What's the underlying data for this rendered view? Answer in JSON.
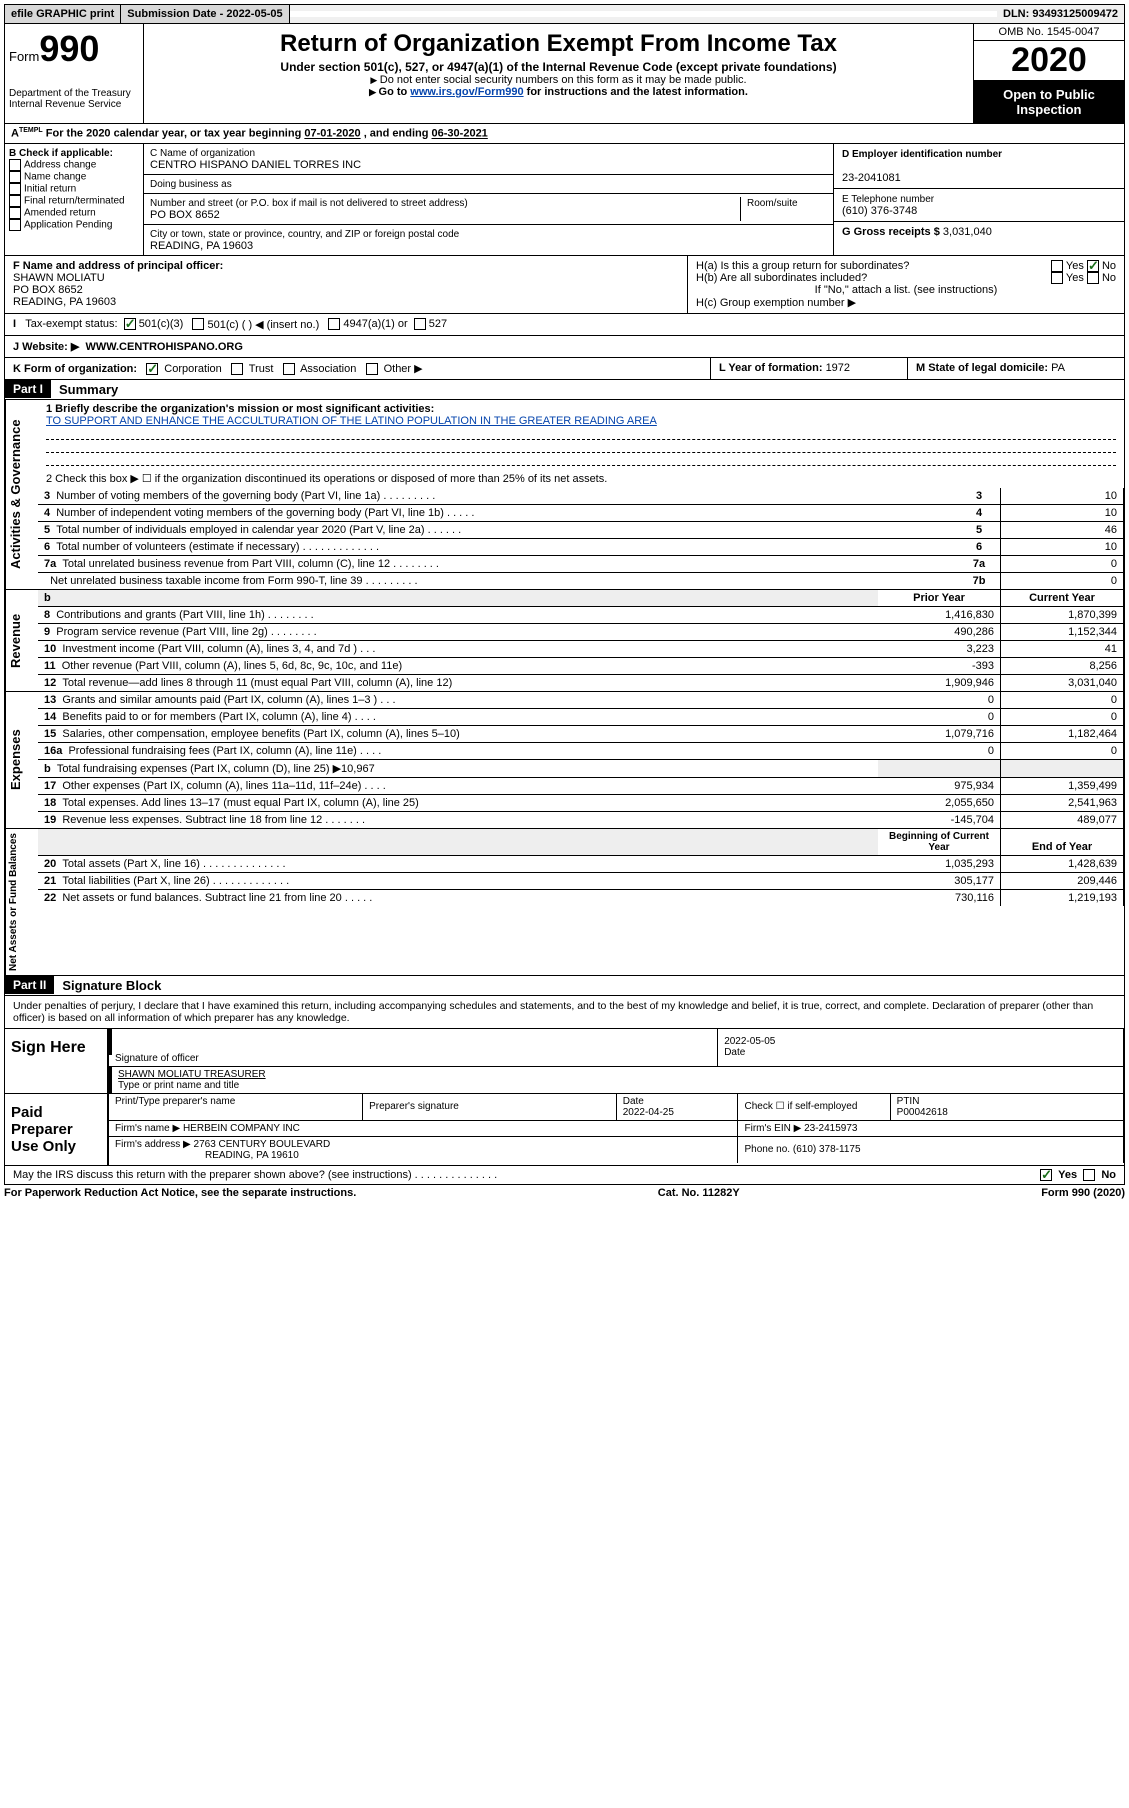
{
  "topbar": {
    "efile": "efile GRAPHIC print",
    "submission_label": "Submission Date - ",
    "submission_date": "2022-05-05",
    "dln_label": "DLN: ",
    "dln": "93493125009472"
  },
  "header": {
    "form_prefix": "Form",
    "form_number": "990",
    "dept": "Department of the Treasury\nInternal Revenue Service",
    "title": "Return of Organization Exempt From Income Tax",
    "subtitle": "Under section 501(c), 527, or 4947(a)(1) of the Internal Revenue Code (except private foundations)",
    "note1": "Do not enter social security numbers on this form as it may be made public.",
    "note2_pre": "Go to ",
    "note2_link": "www.irs.gov/Form990",
    "note2_post": " for instructions and the latest information.",
    "omb": "OMB No. 1545-0047",
    "year": "2020",
    "open": "Open to Public Inspection"
  },
  "period": {
    "line_a": "For the 2020 calendar year, or tax year beginning ",
    "begin": "07-01-2020",
    "mid": " , and ending ",
    "end": "06-30-2021"
  },
  "box_b": {
    "title": "B Check if applicable:",
    "items": [
      "Address change",
      "Name change",
      "Initial return",
      "Final return/terminated",
      "Amended return",
      "Application Pending"
    ]
  },
  "box_c": {
    "name_label": "C Name of organization",
    "name": "CENTRO HISPANO DANIEL TORRES INC",
    "dba_label": "Doing business as",
    "street_label": "Number and street (or P.O. box if mail is not delivered to street address)",
    "room_label": "Room/suite",
    "street": "PO BOX 8652",
    "city_label": "City or town, state or province, country, and ZIP or foreign postal code",
    "city": "READING, PA  19603"
  },
  "box_d": {
    "ein_label": "D Employer identification number",
    "ein": "23-2041081",
    "phone_label": "E Telephone number",
    "phone": "(610) 376-3748",
    "gross_label": "G Gross receipts $ ",
    "gross": "3,031,040"
  },
  "box_f": {
    "label": "F Name and address of principal officer:",
    "name": "SHAWN MOLIATU",
    "addr1": "PO BOX 8652",
    "addr2": "READING, PA  19603"
  },
  "box_h": {
    "ha": "H(a)  Is this a group return for subordinates?",
    "hb": "H(b)  Are all subordinates included?",
    "hb_note": "If \"No,\" attach a list. (see instructions)",
    "hc": "H(c)  Group exemption number ▶"
  },
  "tax_status": {
    "label": "Tax-exempt status:",
    "opt1": "501(c)(3)",
    "opt2": "501(c) (  ) ◀ (insert no.)",
    "opt3": "4947(a)(1) or",
    "opt4": "527"
  },
  "website": {
    "label": "J    Website: ▶",
    "value": "WWW.CENTROHISPANO.ORG"
  },
  "kl": {
    "k": "K Form of organization:",
    "k_opts": [
      "Corporation",
      "Trust",
      "Association",
      "Other ▶"
    ],
    "l_label": "L Year of formation: ",
    "l_val": "1972",
    "m_label": "M State of legal domicile: ",
    "m_val": "PA"
  },
  "part1": {
    "header": "Part I",
    "title": "Summary",
    "line1_label": "1   Briefly describe the organization's mission or most significant activities:",
    "mission": "TO SUPPORT AND ENHANCE THE ACCULTURATION OF THE LATINO POPULATION IN THE GREATER READING AREA",
    "line2": "2   Check this box ▶ ☐  if the organization discontinued its operations or disposed of more than 25% of its net assets.",
    "rows_gov": [
      {
        "n": "3",
        "t": "Number of voting members of the governing body (Part VI, line 1a)  .    .    .    .    .    .    .    .    .",
        "b": "3",
        "v": "10"
      },
      {
        "n": "4",
        "t": "Number of independent voting members of the governing body (Part VI, line 1b)  .    .    .    .    .",
        "b": "4",
        "v": "10"
      },
      {
        "n": "5",
        "t": "Total number of individuals employed in calendar year 2020 (Part V, line 2a)  .    .    .    .    .    .",
        "b": "5",
        "v": "46"
      },
      {
        "n": "6",
        "t": "Total number of volunteers (estimate if necessary)  .    .    .    .    .    .    .    .    .    .    .    .    .",
        "b": "6",
        "v": "10"
      },
      {
        "n": "7a",
        "t": "Total unrelated business revenue from Part VIII, column (C), line 12  .    .    .    .    .    .    .    .",
        "b": "7a",
        "v": "0"
      },
      {
        "n": "",
        "t": "Net unrelated business taxable income from Form 990-T, line 39  .    .    .    .    .    .    .    .    .",
        "b": "7b",
        "v": "0"
      }
    ],
    "rev_header_prior": "Prior Year",
    "rev_header_curr": "Current Year",
    "rows_rev": [
      {
        "n": "8",
        "t": "Contributions and grants (Part VIII, line 1h)  .    .    .    .    .    .    .    .",
        "p": "1,416,830",
        "c": "1,870,399"
      },
      {
        "n": "9",
        "t": "Program service revenue (Part VIII, line 2g)  .    .    .    .    .    .    .    .",
        "p": "490,286",
        "c": "1,152,344"
      },
      {
        "n": "10",
        "t": "Investment income (Part VIII, column (A), lines 3, 4, and 7d )  .    .    .",
        "p": "3,223",
        "c": "41"
      },
      {
        "n": "11",
        "t": "Other revenue (Part VIII, column (A), lines 5, 6d, 8c, 9c, 10c, and 11e)",
        "p": "-393",
        "c": "8,256"
      },
      {
        "n": "12",
        "t": "Total revenue—add lines 8 through 11 (must equal Part VIII, column (A), line 12)",
        "p": "1,909,946",
        "c": "3,031,040"
      }
    ],
    "rows_exp": [
      {
        "n": "13",
        "t": "Grants and similar amounts paid (Part IX, column (A), lines 1–3 )  .    .    .",
        "p": "0",
        "c": "0"
      },
      {
        "n": "14",
        "t": "Benefits paid to or for members (Part IX, column (A), line 4)  .    .    .    .",
        "p": "0",
        "c": "0"
      },
      {
        "n": "15",
        "t": "Salaries, other compensation, employee benefits (Part IX, column (A), lines 5–10)",
        "p": "1,079,716",
        "c": "1,182,464"
      },
      {
        "n": "16a",
        "t": "Professional fundraising fees (Part IX, column (A), line 11e)  .    .    .    .",
        "p": "0",
        "c": "0"
      },
      {
        "n": "b",
        "t": "Total fundraising expenses (Part IX, column (D), line 25) ▶10,967",
        "p": "",
        "c": "",
        "grey": true
      },
      {
        "n": "17",
        "t": "Other expenses (Part IX, column (A), lines 11a–11d, 11f–24e)  .    .    .    .",
        "p": "975,934",
        "c": "1,359,499"
      },
      {
        "n": "18",
        "t": "Total expenses. Add lines 13–17 (must equal Part IX, column (A), line 25)",
        "p": "2,055,650",
        "c": "2,541,963"
      },
      {
        "n": "19",
        "t": "Revenue less expenses. Subtract line 18 from line 12  .    .    .    .    .    .    .",
        "p": "-145,704",
        "c": "489,077"
      }
    ],
    "na_header_boy": "Beginning of Current Year",
    "na_header_eoy": "End of Year",
    "rows_na": [
      {
        "n": "20",
        "t": "Total assets (Part X, line 16)  .    .    .    .    .    .    .    .    .    .    .    .    .    .",
        "p": "1,035,293",
        "c": "1,428,639"
      },
      {
        "n": "21",
        "t": "Total liabilities (Part X, line 26)  .    .    .    .    .    .    .    .    .    .    .    .    .",
        "p": "305,177",
        "c": "209,446"
      },
      {
        "n": "22",
        "t": "Net assets or fund balances. Subtract line 21 from line 20  .    .    .    .    .",
        "p": "730,116",
        "c": "1,219,193"
      }
    ]
  },
  "tabs": {
    "gov": "Activities & Governance",
    "rev": "Revenue",
    "exp": "Expenses",
    "na": "Net Assets or Fund Balances"
  },
  "part2": {
    "header": "Part II",
    "title": "Signature Block",
    "declaration": "Under penalties of perjury, I declare that I have examined this return, including accompanying schedules and statements, and to the best of my knowledge and belief, it is true, correct, and complete. Declaration of preparer (other than officer) is based on all information of which preparer has any knowledge."
  },
  "sign_here": {
    "label": "Sign Here",
    "sig_officer": "Signature of officer",
    "date_label": "Date",
    "date": "2022-05-05",
    "name": "SHAWN MOLIATU  TREASURER",
    "name_label": "Type or print name and title"
  },
  "preparer": {
    "label": "Paid Preparer Use Only",
    "print_name_label": "Print/Type preparer's name",
    "sig_label": "Preparer's signature",
    "date_label": "Date",
    "date": "2022-04-25",
    "check_label": "Check ☐ if self-employed",
    "ptin_label": "PTIN",
    "ptin": "P00042618",
    "firm_name_label": "Firm's name    ▶",
    "firm_name": "HERBEIN COMPANY INC",
    "firm_ein_label": "Firm's EIN ▶",
    "firm_ein": "23-2415973",
    "firm_addr_label": "Firm's address ▶",
    "firm_addr1": "2763 CENTURY BOULEVARD",
    "firm_addr2": "READING, PA  19610",
    "phone_label": "Phone no. ",
    "phone": "(610) 378-1175",
    "discuss": "May the IRS discuss this return with the preparer shown above? (see instructions)  .    .    .    .    .    .    .    .    .    .    .    .    .    ."
  },
  "footer": {
    "pra": "For Paperwork Reduction Act Notice, see the separate instructions.",
    "cat": "Cat. No. 11282Y",
    "form": "Form 990 (2020)"
  },
  "yesno": {
    "yes": "Yes",
    "no": "No"
  }
}
